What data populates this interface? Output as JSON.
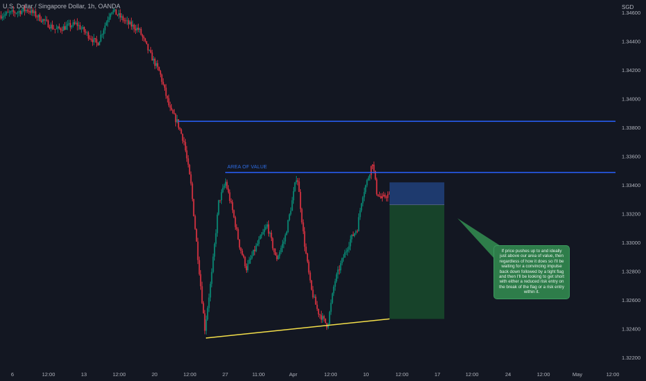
{
  "chart_data": {
    "type": "candlestick",
    "title": "U.S. Dollar / Singapore Dollar, 1h, OANDA",
    "currency_label": "SGD",
    "ylim": [
      1.3212,
      1.3471
    ],
    "y_ticks": [
      "1.34600",
      "1.34400",
      "1.34200",
      "1.34000",
      "1.33800",
      "1.33600",
      "1.33400",
      "1.33200",
      "1.33000",
      "1.32800",
      "1.32600",
      "1.32400",
      "1.32200"
    ],
    "x_ticks": [
      "6",
      "12:00",
      "13",
      "12:00",
      "20",
      "12:00",
      "27",
      "11:00",
      "Apr",
      "12:00",
      "10",
      "12:00",
      "17",
      "12:00",
      "24",
      "12:00",
      "May",
      "12:00"
    ],
    "price_path": [
      [
        0,
        1.3458
      ],
      [
        40,
        1.3462
      ],
      [
        80,
        1.3448
      ],
      [
        110,
        1.3452
      ],
      [
        140,
        1.3438
      ],
      [
        160,
        1.3462
      ],
      [
        185,
        1.3452
      ],
      [
        200,
        1.3448
      ],
      [
        215,
        1.3432
      ],
      [
        230,
        1.3418
      ],
      [
        245,
        1.3392
      ],
      [
        255,
        1.3384
      ],
      [
        265,
        1.337
      ],
      [
        275,
        1.334
      ],
      [
        285,
        1.329
      ],
      [
        295,
        1.324
      ],
      [
        305,
        1.3278
      ],
      [
        315,
        1.3328
      ],
      [
        325,
        1.3342
      ],
      [
        335,
        1.3322
      ],
      [
        345,
        1.3298
      ],
      [
        355,
        1.3282
      ],
      [
        370,
        1.3298
      ],
      [
        385,
        1.3312
      ],
      [
        398,
        1.3288
      ],
      [
        410,
        1.3302
      ],
      [
        420,
        1.3326
      ],
      [
        428,
        1.3348
      ],
      [
        438,
        1.3302
      ],
      [
        448,
        1.3268
      ],
      [
        458,
        1.3252
      ],
      [
        472,
        1.3242
      ],
      [
        482,
        1.3272
      ],
      [
        492,
        1.3286
      ],
      [
        505,
        1.3302
      ],
      [
        515,
        1.331
      ],
      [
        522,
        1.3332
      ],
      [
        530,
        1.3344
      ],
      [
        537,
        1.3356
      ],
      [
        543,
        1.3335
      ],
      [
        550,
        1.333
      ],
      [
        558,
        1.3333
      ],
      [
        562,
        1.3332
      ]
    ],
    "horizontal_lines": [
      {
        "price": 1.33843,
        "color": "#2962ff"
      },
      {
        "price": 1.33487,
        "color": "#2962ff",
        "label": "AREA OF VALUE"
      }
    ],
    "trendline": {
      "from": [
        297,
        1.32335
      ],
      "to": [
        562,
        1.32468
      ],
      "color": "#f5e04a"
    },
    "position": {
      "type": "short",
      "entry": 1.33262,
      "stop": 1.33418,
      "target": 1.32468,
      "stop_color": "#1e3a6e",
      "target_color": "#17432a"
    },
    "annotation_text": "If price pushes up to and ideally just above our area of value, then regardless of how it does so I'll be waiting for a convincing impulse back down followed by a tight flag and then I'll be looking to get short with either a reduced risk entry on the break of the flag or a risk entry within it."
  }
}
